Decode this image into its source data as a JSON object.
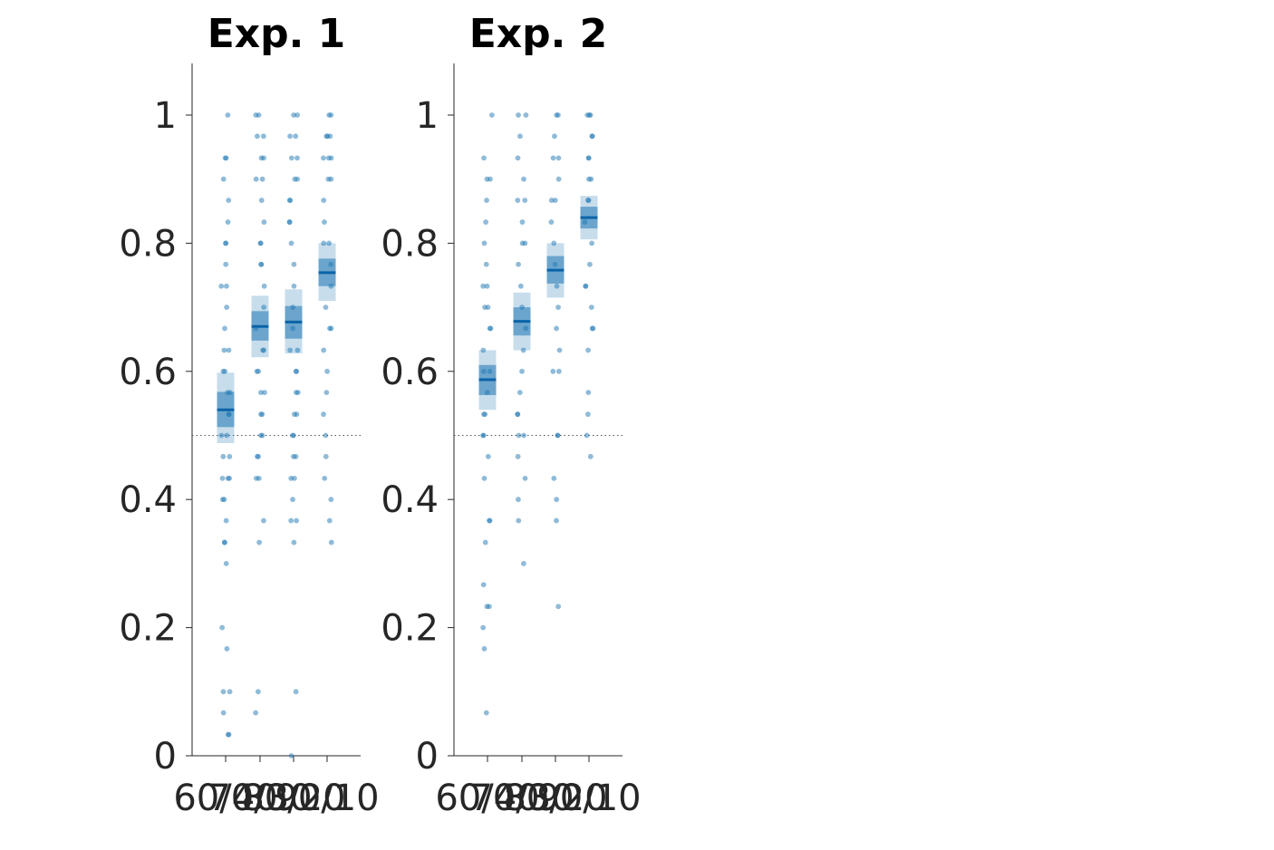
{
  "chart_data": [
    {
      "type": "scatter",
      "title": "Exp. 1",
      "xlabel": "",
      "ylabel": "",
      "categories": [
        "60/40",
        "70/30",
        "80/20",
        "90/10"
      ],
      "ylim": [
        0,
        1.08
      ],
      "yticks": [
        0,
        0.2,
        0.4,
        0.6,
        0.8,
        1
      ],
      "ytick_labels": [
        "0",
        "0.2",
        "0.4",
        "0.6",
        "0.8",
        "1"
      ],
      "reference_line": 0.5,
      "grid": false,
      "point_color": "#1f77b4",
      "summary": [
        {
          "mean": 0.54,
          "ci_inner": [
            0.513,
            0.568
          ],
          "ci_outer": [
            0.488,
            0.598
          ]
        },
        {
          "mean": 0.67,
          "ci_inner": [
            0.648,
            0.694
          ],
          "ci_outer": [
            0.622,
            0.718
          ]
        },
        {
          "mean": 0.677,
          "ci_inner": [
            0.651,
            0.702
          ],
          "ci_outer": [
            0.628,
            0.728
          ]
        },
        {
          "mean": 0.754,
          "ci_inner": [
            0.733,
            0.776
          ],
          "ci_outer": [
            0.71,
            0.8
          ]
        }
      ],
      "series": [
        {
          "values": [
            1.0,
            0.933,
            0.933,
            0.9,
            0.867,
            0.833,
            0.8,
            0.8,
            0.767,
            0.733,
            0.733,
            0.7,
            0.667,
            0.633,
            0.633,
            0.6,
            0.6,
            0.567,
            0.567,
            0.533,
            0.533,
            0.5,
            0.5,
            0.467,
            0.467,
            0.433,
            0.433,
            0.433,
            0.4,
            0.4,
            0.367,
            0.333,
            0.333,
            0.3,
            0.2,
            0.167,
            0.1,
            0.1,
            0.067,
            0.033,
            0.033
          ]
        },
        {
          "values": [
            1.0,
            1.0,
            0.967,
            0.967,
            0.933,
            0.933,
            0.9,
            0.9,
            0.867,
            0.833,
            0.8,
            0.8,
            0.767,
            0.767,
            0.733,
            0.7,
            0.667,
            0.633,
            0.633,
            0.6,
            0.6,
            0.567,
            0.567,
            0.533,
            0.533,
            0.5,
            0.5,
            0.467,
            0.467,
            0.433,
            0.433,
            0.367,
            0.333,
            0.1,
            0.067
          ]
        },
        {
          "values": [
            1.0,
            1.0,
            0.967,
            0.967,
            0.933,
            0.933,
            0.9,
            0.9,
            0.867,
            0.867,
            0.833,
            0.833,
            0.8,
            0.767,
            0.733,
            0.7,
            0.667,
            0.633,
            0.633,
            0.6,
            0.6,
            0.567,
            0.567,
            0.533,
            0.533,
            0.5,
            0.5,
            0.467,
            0.467,
            0.433,
            0.433,
            0.4,
            0.367,
            0.367,
            0.333,
            0.1,
            0.0
          ]
        },
        {
          "values": [
            1.0,
            1.0,
            0.967,
            0.967,
            0.967,
            0.933,
            0.933,
            0.933,
            0.9,
            0.9,
            0.867,
            0.833,
            0.8,
            0.8,
            0.767,
            0.733,
            0.7,
            0.667,
            0.667,
            0.633,
            0.6,
            0.567,
            0.533,
            0.5,
            0.467,
            0.433,
            0.4,
            0.367,
            0.333
          ]
        }
      ]
    },
    {
      "type": "scatter",
      "title": "Exp. 2",
      "xlabel": "",
      "ylabel": "",
      "categories": [
        "60/40",
        "70/30",
        "80/20",
        "90/10"
      ],
      "ylim": [
        0,
        1.08
      ],
      "yticks": [
        0,
        0.2,
        0.4,
        0.6,
        0.8,
        1
      ],
      "ytick_labels": [
        "0",
        "0.2",
        "0.4",
        "0.6",
        "0.8",
        "1"
      ],
      "reference_line": 0.5,
      "grid": false,
      "point_color": "#1f77b4",
      "summary": [
        {
          "mean": 0.587,
          "ci_inner": [
            0.563,
            0.61
          ],
          "ci_outer": [
            0.54,
            0.633
          ]
        },
        {
          "mean": 0.678,
          "ci_inner": [
            0.656,
            0.7
          ],
          "ci_outer": [
            0.633,
            0.723
          ]
        },
        {
          "mean": 0.758,
          "ci_inner": [
            0.737,
            0.78
          ],
          "ci_outer": [
            0.715,
            0.8
          ]
        },
        {
          "mean": 0.84,
          "ci_inner": [
            0.823,
            0.857
          ],
          "ci_outer": [
            0.806,
            0.874
          ]
        }
      ],
      "series": [
        {
          "values": [
            1.0,
            0.933,
            0.9,
            0.9,
            0.867,
            0.833,
            0.8,
            0.767,
            0.733,
            0.733,
            0.7,
            0.7,
            0.667,
            0.667,
            0.633,
            0.6,
            0.6,
            0.567,
            0.533,
            0.533,
            0.5,
            0.5,
            0.467,
            0.433,
            0.367,
            0.367,
            0.333,
            0.267,
            0.233,
            0.233,
            0.2,
            0.167,
            0.067
          ]
        },
        {
          "values": [
            1.0,
            1.0,
            0.967,
            0.933,
            0.9,
            0.867,
            0.867,
            0.833,
            0.8,
            0.8,
            0.767,
            0.733,
            0.7,
            0.667,
            0.633,
            0.6,
            0.567,
            0.533,
            0.533,
            0.5,
            0.5,
            0.467,
            0.433,
            0.4,
            0.367,
            0.3
          ]
        },
        {
          "values": [
            1.0,
            1.0,
            0.967,
            0.933,
            0.933,
            0.9,
            0.867,
            0.867,
            0.833,
            0.8,
            0.767,
            0.733,
            0.7,
            0.667,
            0.633,
            0.6,
            0.6,
            0.5,
            0.5,
            0.433,
            0.4,
            0.367,
            0.233
          ]
        },
        {
          "values": [
            1.0,
            1.0,
            1.0,
            0.967,
            0.967,
            0.933,
            0.933,
            0.9,
            0.9,
            0.867,
            0.867,
            0.833,
            0.8,
            0.767,
            0.733,
            0.733,
            0.7,
            0.667,
            0.667,
            0.633,
            0.567,
            0.533,
            0.5,
            0.467
          ]
        }
      ]
    }
  ]
}
